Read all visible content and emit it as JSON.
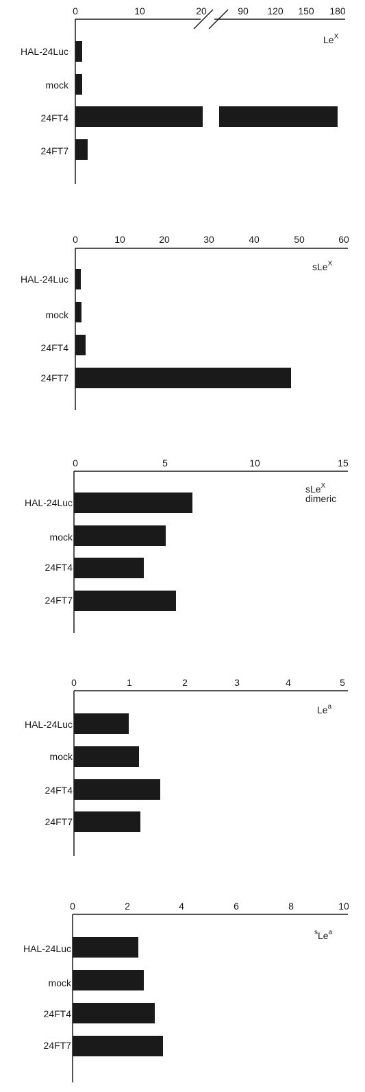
{
  "chart_data": [
    {
      "type": "bar",
      "orientation": "horizontal",
      "label_main": "Le",
      "label_sup": "X",
      "label_second": "",
      "xticks": [
        "0",
        "10",
        "20",
        "90",
        "120",
        "150",
        "180"
      ],
      "axis_break": true,
      "xlim": [
        0,
        180
      ],
      "categories": [
        "HAL-24Luc",
        "mock",
        "24FT4",
        "24FT7"
      ],
      "values": [
        1,
        1,
        180,
        2
      ]
    },
    {
      "type": "bar",
      "orientation": "horizontal",
      "label_main": "sLe",
      "label_sup": "X",
      "label_second": "",
      "xticks": [
        "0",
        "10",
        "20",
        "30",
        "40",
        "50",
        "60"
      ],
      "axis_break": false,
      "xlim": [
        0,
        60
      ],
      "categories": [
        "HAL-24Luc",
        "mock",
        "24FT4",
        "24FT7"
      ],
      "values": [
        1.2,
        1.3,
        2.3,
        48.5
      ]
    },
    {
      "type": "bar",
      "orientation": "horizontal",
      "label_main": "sLe",
      "label_sup": "X",
      "label_second": "dimeric",
      "xticks": [
        "0",
        "5",
        "10",
        "15"
      ],
      "axis_break": false,
      "xlim": [
        0,
        15
      ],
      "categories": [
        "HAL-24Luc",
        "mock",
        "24FT4",
        "24FT7"
      ],
      "values": [
        6.6,
        5.1,
        3.9,
        5.7
      ]
    },
    {
      "type": "bar",
      "orientation": "horizontal",
      "label_main": "Le",
      "label_sup": "a",
      "label_second": "",
      "xticks": [
        "0",
        "1",
        "2",
        "3",
        "4",
        "5"
      ],
      "axis_break": false,
      "xlim": [
        0,
        5
      ],
      "categories": [
        "HAL-24Luc",
        "mock",
        "24FT4",
        "24FT7"
      ],
      "values": [
        1.0,
        1.2,
        1.6,
        1.2
      ]
    },
    {
      "type": "bar",
      "orientation": "horizontal",
      "label_main": "",
      "label_prefix_sup": "s",
      "label_after": "Le",
      "label_sup": "a",
      "label_second": "",
      "xticks": [
        "0",
        "2",
        "4",
        "6",
        "8",
        "10"
      ],
      "axis_break": false,
      "xlim": [
        0,
        10
      ],
      "categories": [
        "HAL-24Luc",
        "mock",
        "24FT4",
        "24FT7"
      ],
      "values": [
        2.4,
        2.6,
        3.0,
        3.3
      ]
    }
  ]
}
